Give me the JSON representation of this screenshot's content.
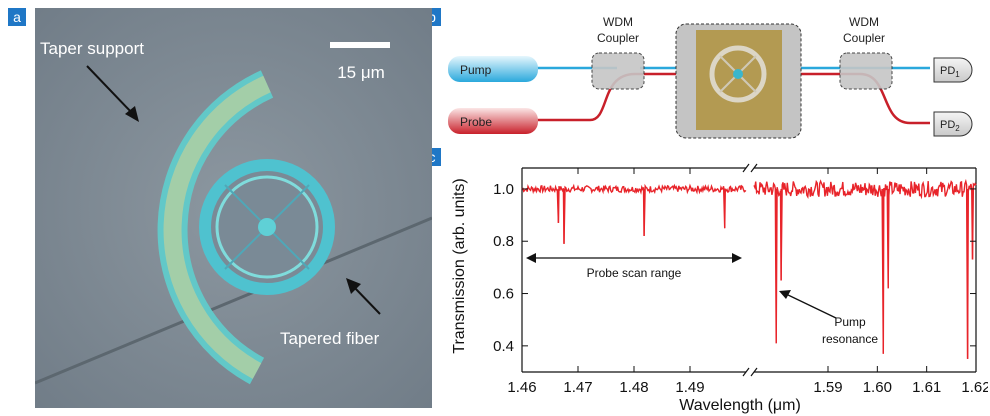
{
  "panels": {
    "a": "a",
    "b": "b",
    "c": "c"
  },
  "photo": {
    "scale_bar_label": "15 μm",
    "taper_support_label": "Taper support",
    "tapered_fiber_label": "Tapered fiber"
  },
  "schematic": {
    "pump_label": "Pump",
    "probe_label": "Probe",
    "wdm_left_line1": "WDM",
    "wdm_left_line2": "Coupler",
    "wdm_right_line1": "WDM",
    "wdm_right_line2": "Coupler",
    "pd1_label": "PD",
    "pd1_sub": "1",
    "pd2_label": "PD",
    "pd2_sub": "2",
    "colors": {
      "pump": "#2aa8dc",
      "probe": "#c8202a"
    }
  },
  "chart_data": {
    "type": "line",
    "xlabel": "Wavelength (μm)",
    "ylabel": "Transmission (arb. units)",
    "ylim": [
      0.3,
      1.08
    ],
    "yticks": [
      "0.4",
      "0.6",
      "0.8",
      "1.0"
    ],
    "ytick_values": [
      0.4,
      0.6,
      0.8,
      1.0
    ],
    "broken_axis": true,
    "color": "#e8242a",
    "segments": [
      {
        "xlim": [
          1.46,
          1.5
        ],
        "xticks": [
          "1.46",
          "1.47",
          "1.48",
          "1.49"
        ],
        "xtick_values": [
          1.46,
          1.47,
          1.48,
          1.49
        ],
        "baseline": 1.0,
        "dips": [
          {
            "x": 1.4665,
            "y": 0.87
          },
          {
            "x": 1.4675,
            "y": 0.79
          },
          {
            "x": 1.4818,
            "y": 0.82
          },
          {
            "x": 1.4962,
            "y": 0.85
          }
        ]
      },
      {
        "xlim": [
          1.575,
          1.62
        ],
        "xticks": [
          "1.59",
          "1.60",
          "1.61",
          "1.62"
        ],
        "xtick_values": [
          1.59,
          1.6,
          1.61,
          1.62
        ],
        "baseline": 1.0,
        "dips": [
          {
            "x": 1.5795,
            "y": 0.41
          },
          {
            "x": 1.5805,
            "y": 0.65
          },
          {
            "x": 1.6012,
            "y": 0.37
          },
          {
            "x": 1.6022,
            "y": 0.62
          },
          {
            "x": 1.6183,
            "y": 0.35
          },
          {
            "x": 1.6193,
            "y": 0.73
          }
        ]
      }
    ],
    "annotations": {
      "probe_scan_range": "Probe scan range",
      "pump_resonance_line1": "Pump",
      "pump_resonance_line2": "resonance"
    }
  }
}
